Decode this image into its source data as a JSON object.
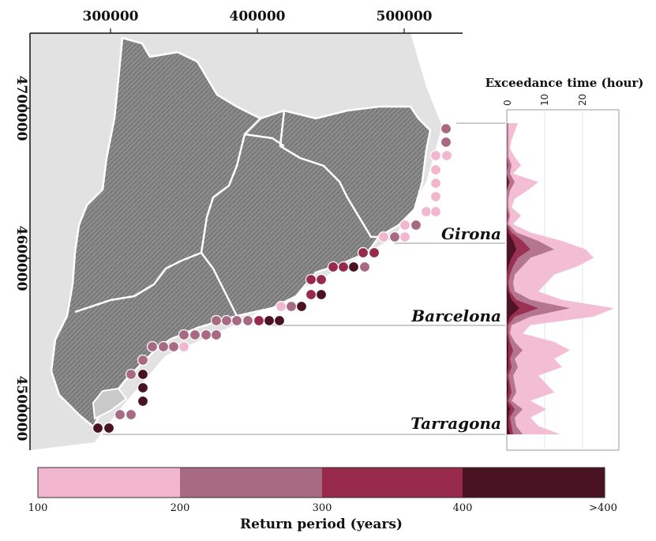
{
  "axes": {
    "x_ticks": [
      "300000",
      "400000",
      "500000"
    ],
    "y_ticks": [
      "4700000",
      "4600000",
      "4500000"
    ]
  },
  "cities": [
    "Girona",
    "Barcelona",
    "Tarragona"
  ],
  "exceedance_panel": {
    "title": "Exceedance time (hour)",
    "ticks": [
      "0",
      "10",
      "20"
    ]
  },
  "colorbar": {
    "title": "Return period (years)",
    "tick_labels": [
      "100",
      "200",
      "300",
      "400",
      ">400"
    ],
    "classes": [
      {
        "range": "100-200",
        "color": "#f2b6ce"
      },
      {
        "range": "200-300",
        "color": "#a86a82"
      },
      {
        "range": "300-400",
        "color": "#972a4b"
      },
      {
        "range": ">400",
        "color": "#4a1322"
      }
    ]
  },
  "colors": {
    "relief": "#8e8e8e",
    "background_relief": "#dcdcdc",
    "border": "#ffffff"
  }
}
